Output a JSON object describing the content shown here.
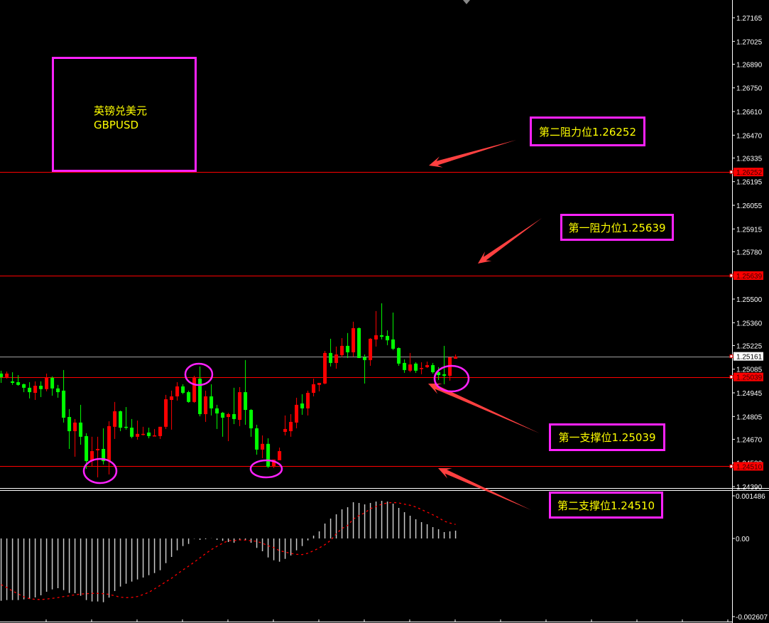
{
  "chart_data": {
    "type": "candlestick",
    "symbol_label_cn": "英镑兑美元",
    "symbol_label": "GBPUSD",
    "up_color": "#ff0000",
    "down_color": "#00ff00",
    "price_ylim": [
      1.2439,
      1.27165
    ],
    "price_ticks": [
      "1.27165",
      "1.27025",
      "1.26890",
      "1.26750",
      "1.26610",
      "1.26470",
      "1.26335",
      "1.26195",
      "1.26055",
      "1.25915",
      "1.25780",
      "1.25500",
      "1.25360",
      "1.25225",
      "1.25085",
      "1.24945",
      "1.24805",
      "1.24670",
      "1.24530",
      "1.24390"
    ],
    "price_tags": [
      {
        "value": "1.26252",
        "color": "#ff0000"
      },
      {
        "value": "1.25639",
        "color": "#ff0000"
      },
      {
        "value": "1.25161",
        "color": "#ffffff"
      },
      {
        "value": "1.25039",
        "color": "#ff0000"
      },
      {
        "value": "1.24510",
        "color": "#ff0000"
      }
    ],
    "horizontal_lines": [
      {
        "price": 1.26252,
        "color": "#ff0000"
      },
      {
        "price": 1.25639,
        "color": "#ff0000"
      },
      {
        "price": 1.25161,
        "color": "#a0a0a0"
      },
      {
        "price": 1.25039,
        "color": "#ff0000"
      },
      {
        "price": 1.2451,
        "color": "#ff0000"
      }
    ],
    "ohlc": [
      [
        1.25059,
        1.25076,
        1.25004,
        1.25038
      ],
      [
        1.25038,
        1.25071,
        1.25029,
        1.25059
      ],
      [
        1.25013,
        1.25067,
        1.24992,
        1.25004
      ],
      [
        1.25008,
        1.2505,
        1.24987,
        1.24992
      ],
      [
        1.24996,
        1.25,
        1.24949,
        1.24975
      ],
      [
        1.24975,
        1.25008,
        1.24912,
        1.24949
      ],
      [
        1.24945,
        1.25013,
        1.24903,
        1.24987
      ],
      [
        1.24987,
        1.25013,
        1.2492,
        1.24967
      ],
      [
        1.24967,
        1.25059,
        1.24954,
        1.25034
      ],
      [
        1.25034,
        1.25042,
        1.24928,
        1.24971
      ],
      [
        1.24971,
        1.24992,
        1.24916,
        1.24949
      ],
      [
        1.24958,
        1.2508,
        1.24769,
        1.24798
      ],
      [
        1.24802,
        1.24849,
        1.24613,
        1.24718
      ],
      [
        1.24718,
        1.2479,
        1.24567,
        1.24769
      ],
      [
        1.24769,
        1.24874,
        1.24638,
        1.24685
      ],
      [
        1.24689,
        1.24706,
        1.24495,
        1.24541
      ],
      [
        1.24541,
        1.24685,
        1.24508,
        1.246
      ],
      [
        1.24605,
        1.24685,
        1.24445,
        1.24613
      ],
      [
        1.24613,
        1.24735,
        1.24521,
        1.24541
      ],
      [
        1.24541,
        1.24777,
        1.24462,
        1.24748
      ],
      [
        1.24744,
        1.24891,
        1.24672,
        1.24836
      ],
      [
        1.24836,
        1.2484,
        1.24718,
        1.24739
      ],
      [
        1.24744,
        1.24861,
        1.24727,
        1.24739
      ],
      [
        1.24739,
        1.2479,
        1.24676,
        1.24685
      ],
      [
        1.24685,
        1.24781,
        1.24668,
        1.24702
      ],
      [
        1.24697,
        1.24744,
        1.24693,
        1.24702
      ],
      [
        1.2471,
        1.24739,
        1.24676,
        1.24689
      ],
      [
        1.24689,
        1.24731,
        1.24689,
        1.24693
      ],
      [
        1.24689,
        1.24744,
        1.24672,
        1.24744
      ],
      [
        1.24744,
        1.24933,
        1.24731,
        1.24907
      ],
      [
        1.24903,
        1.24958,
        1.24727,
        1.24924
      ],
      [
        1.24924,
        1.25008,
        1.24899,
        1.24983
      ],
      [
        1.24983,
        1.24996,
        1.24937,
        1.24945
      ],
      [
        1.24949,
        1.24958,
        1.24886,
        1.24891
      ],
      [
        1.24891,
        1.25046,
        1.24886,
        1.25038
      ],
      [
        1.25029,
        1.25101,
        1.24806,
        1.24819
      ],
      [
        1.24819,
        1.24958,
        1.24773,
        1.24924
      ],
      [
        1.24924,
        1.24996,
        1.24811,
        1.24853
      ],
      [
        1.24853,
        1.24874,
        1.24731,
        1.24823
      ],
      [
        1.24827,
        1.24832,
        1.24685,
        1.24798
      ],
      [
        1.24802,
        1.24827,
        1.24659,
        1.24819
      ],
      [
        1.24819,
        1.24975,
        1.2476,
        1.2479
      ],
      [
        1.24785,
        1.24979,
        1.24748,
        1.24949
      ],
      [
        1.24949,
        1.25139,
        1.24756,
        1.24844
      ],
      [
        1.24844,
        1.24849,
        1.24685,
        1.24735
      ],
      [
        1.24735,
        1.24756,
        1.24579,
        1.24609
      ],
      [
        1.24609,
        1.24693,
        1.24558,
        1.24643
      ],
      [
        1.24643,
        1.24676,
        1.245,
        1.24508
      ],
      [
        1.24508,
        1.2455,
        1.245,
        1.2455
      ],
      [
        1.24546,
        1.24621,
        1.24546,
        1.246
      ],
      [
        1.24714,
        1.24811,
        1.24693,
        1.24731
      ],
      [
        1.24718,
        1.24819,
        1.24685,
        1.24773
      ],
      [
        1.24769,
        1.24916,
        1.24735,
        1.24874
      ],
      [
        1.24882,
        1.24937,
        1.24815,
        1.24853
      ],
      [
        1.24853,
        1.24958,
        1.24811,
        1.24945
      ],
      [
        1.24945,
        1.25029,
        1.24924,
        1.24996
      ],
      [
        1.24992,
        1.25004,
        1.24954,
        1.25004
      ],
      [
        1.25,
        1.25193,
        1.24996,
        1.25181
      ],
      [
        1.25181,
        1.25265,
        1.25101,
        1.25122
      ],
      [
        1.25122,
        1.25219,
        1.25088,
        1.25172
      ],
      [
        1.25168,
        1.25269,
        1.25156,
        1.25223
      ],
      [
        1.25223,
        1.25299,
        1.25151,
        1.25185
      ],
      [
        1.25185,
        1.25366,
        1.2516,
        1.25328
      ],
      [
        1.25328,
        1.25332,
        1.25151,
        1.25151
      ],
      [
        1.25156,
        1.25172,
        1.25,
        1.25139
      ],
      [
        1.25139,
        1.25269,
        1.25105,
        1.25265
      ],
      [
        1.25261,
        1.25429,
        1.25219,
        1.25286
      ],
      [
        1.25286,
        1.25475,
        1.25261,
        1.25277
      ],
      [
        1.25282,
        1.25315,
        1.25227,
        1.25256
      ],
      [
        1.25261,
        1.2542,
        1.25198,
        1.25206
      ],
      [
        1.2521,
        1.25214,
        1.25105,
        1.25118
      ],
      [
        1.25122,
        1.25143,
        1.25063,
        1.2508
      ],
      [
        1.25076,
        1.25181,
        1.25067,
        1.25113
      ],
      [
        1.25118,
        1.25126,
        1.25063,
        1.25076
      ],
      [
        1.25088,
        1.25126,
        1.25055,
        1.25092
      ],
      [
        1.25097,
        1.2513,
        1.25092,
        1.25109
      ],
      [
        1.25109,
        1.25122,
        1.25059,
        1.25067
      ],
      [
        1.25067,
        1.25097,
        1.25021,
        1.2505
      ],
      [
        1.25055,
        1.25223,
        1.24996,
        1.25046
      ],
      [
        1.25046,
        1.25156,
        1.25017,
        1.25156
      ],
      [
        1.25147,
        1.25172,
        1.25147,
        1.2516
      ]
    ],
    "macd": {
      "ylim": [
        -0.002607,
        0.001486
      ],
      "ticks": [
        "0.001486",
        "0.00",
        "-0.002607"
      ],
      "histogram_color": "#c8c8c8",
      "signal_color": "#ff0000",
      "histogram": [
        -0.002105,
        -0.002081,
        -0.002081,
        -0.002081,
        -0.002057,
        -0.00204,
        -0.001992,
        -0.00192,
        -0.0018,
        -0.001721,
        -0.00168,
        -0.001745,
        -0.001841,
        -0.001848,
        -0.001937,
        -0.002081,
        -0.002129,
        -0.002129,
        -0.002153,
        -0.001999,
        -0.001776,
        -0.001625,
        -0.001529,
        -0.001457,
        -0.001385,
        -0.00132,
        -0.001241,
        -0.001169,
        -0.001073,
        -0.000833,
        -0.000624,
        -0.000401,
        -0.000257,
        -0.000185,
        -1e-05,
        -4.8e-05,
        -2.4e-05,
        5e-06,
        -4.8e-05,
        -7.9e-05,
        -0.00012,
        -0.000144,
        -4.8e-05,
        -4.8e-05,
        -0.000144,
        -0.000319,
        -0.000432,
        -0.000641,
        -0.000737,
        -0.000785,
        -0.000689,
        -0.000576,
        -0.000401,
        -0.000257,
        -6.5e-05,
        9.6e-05,
        0.00024,
        0.000504,
        0.000672,
        0.000816,
        0.000984,
        0.001056,
        0.001224,
        0.0012,
        0.001152,
        0.0012,
        0.001248,
        0.001272,
        0.001248,
        0.001176,
        0.001032,
        0.000888,
        0.000768,
        0.000648,
        0.000552,
        0.00048,
        0.000384,
        0.000312,
        0.000216,
        0.00024,
        0.000264
      ],
      "signal": [
        -0.00156,
        -0.001656,
        -0.001776,
        -0.001872,
        -0.001968,
        -0.002033,
        -0.002057,
        -0.002064,
        -0.002047,
        -0.002023,
        -0.001999,
        -0.001961,
        -0.001937,
        -0.001903,
        -0.001879,
        -0.001865,
        -0.001855,
        -0.001855,
        -0.001865,
        -0.001889,
        -0.001937,
        -0.001985,
        -0.001999,
        -0.001992,
        -0.001961,
        -0.001896,
        -0.001817,
        -0.001704,
        -0.001584,
        -0.001464,
        -0.001344,
        -0.0012,
        -0.001063,
        -0.000936,
        -0.000799,
        -0.000655,
        -0.000511,
        -0.000377,
        -0.000264,
        -0.000161,
        -7.2e-05,
        -7.2e-05,
        -4.8e-05,
        -5.5e-05,
        -7.9e-05,
        -9.6e-05,
        -0.000161,
        -0.000247,
        -0.000305,
        -0.000415,
        -0.000456,
        -0.000504,
        -0.000535,
        -0.000545,
        -0.000497,
        -0.000415,
        -0.000319,
        -0.000209,
        -6.5e-05,
        0.000161,
        0.000336,
        0.000439,
        0.000655,
        0.000775,
        0.000864,
        0.001008,
        0.00108,
        0.001159,
        0.0012,
        0.001217,
        0.0012,
        0.001159,
        0.001121,
        0.001063,
        0.000977,
        0.000888,
        0.000799,
        0.000703,
        0.000583,
        0.000521,
        0.000473
      ]
    },
    "annotations": {
      "resistance_2": "第二阻力位1.26252",
      "resistance_1": "第一阻力位1.25639",
      "support_1": "第一支撑位1.25039",
      "support_2": "第二支撑位1.24510"
    },
    "annotation_color": "#ff22ff",
    "annotation_text_color": "#ffff00",
    "arrow_color": "#ff4040"
  }
}
